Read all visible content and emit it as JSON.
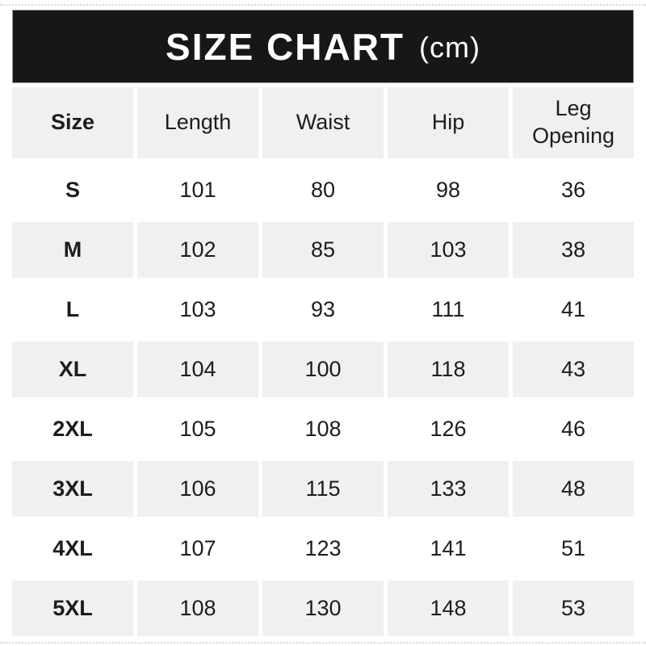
{
  "page": {
    "header": {
      "title": "SIZE CHART",
      "unit_label": "(cm)"
    },
    "colors": {
      "header_bg": "#171717",
      "header_text": "#ffffff",
      "alt_row_bg": "#f0f0f0",
      "text": "#1d1d1d"
    }
  },
  "chart_data": {
    "type": "table",
    "title": "SIZE CHART (cm)",
    "units": "cm",
    "columns": [
      "Size",
      "Length",
      "Waist",
      "Hip",
      "Leg Opening"
    ],
    "rows": [
      [
        "S",
        "101",
        "80",
        "98",
        "36"
      ],
      [
        "M",
        "102",
        "85",
        "103",
        "38"
      ],
      [
        "L",
        "103",
        "93",
        "111",
        "41"
      ],
      [
        "XL",
        "104",
        "100",
        "118",
        "43"
      ],
      [
        "2XL",
        "105",
        "108",
        "126",
        "46"
      ],
      [
        "3XL",
        "106",
        "115",
        "133",
        "48"
      ],
      [
        "4XL",
        "107",
        "123",
        "141",
        "51"
      ],
      [
        "5XL",
        "108",
        "130",
        "148",
        "53"
      ]
    ]
  }
}
